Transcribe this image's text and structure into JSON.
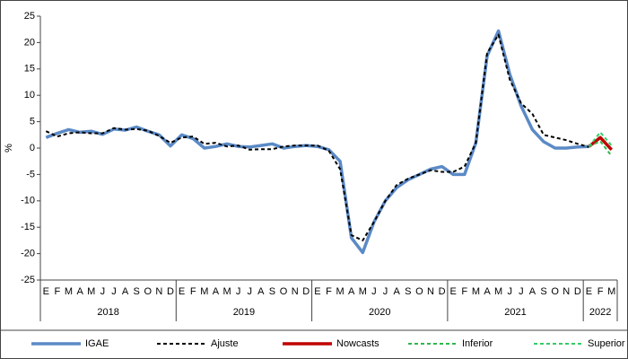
{
  "chart_data": {
    "type": "line",
    "y_label": "%",
    "categories": [
      "E",
      "F",
      "M",
      "A",
      "M",
      "J",
      "J",
      "A",
      "S",
      "O",
      "N",
      "D",
      "E",
      "F",
      "M",
      "A",
      "M",
      "J",
      "J",
      "A",
      "S",
      "O",
      "N",
      "D",
      "E",
      "F",
      "M",
      "A",
      "M",
      "J",
      "J",
      "A",
      "S",
      "O",
      "N",
      "D",
      "E",
      "F",
      "M",
      "A",
      "M",
      "J",
      "J",
      "A",
      "S",
      "O",
      "N",
      "D",
      "E",
      "F",
      "M"
    ],
    "years": [
      "2018",
      "2019",
      "2020",
      "2021",
      "2022"
    ],
    "ylim": [
      -25,
      25
    ],
    "yticks": [
      -25,
      -20,
      -15,
      -10,
      -5,
      0,
      5,
      10,
      15,
      20,
      25
    ],
    "series": [
      {
        "name": "IGAE",
        "color": "#5b8ac6",
        "dashed": false,
        "values": [
          2.0,
          2.8,
          3.5,
          3.0,
          3.2,
          2.6,
          3.6,
          3.4,
          4.0,
          3.2,
          2.5,
          0.4,
          2.5,
          1.8,
          0.0,
          0.3,
          0.8,
          0.3,
          0.2,
          0.5,
          0.8,
          0.0,
          0.3,
          0.5,
          0.3,
          -0.3,
          -2.5,
          -17,
          -19.8,
          -14,
          -10,
          -7.5,
          -6,
          -5,
          -4,
          -3.5,
          -5,
          -5,
          1,
          17.5,
          22.2,
          14,
          8,
          3.5,
          1.2,
          0.0,
          0.0,
          0.2,
          0.3,
          null,
          null
        ]
      },
      {
        "name": "Ajuste",
        "color": "#000000",
        "dashed": true,
        "values": [
          3.2,
          2.2,
          2.8,
          3.0,
          2.8,
          2.8,
          3.8,
          3.5,
          3.6,
          3.3,
          2.3,
          1.0,
          2.0,
          2.2,
          0.8,
          1.0,
          0.3,
          0.5,
          -0.3,
          -0.2,
          -0.2,
          0.3,
          0.5,
          0.5,
          0.5,
          -0.5,
          -4,
          -16.5,
          -17.5,
          -14,
          -10,
          -7,
          -5.8,
          -5,
          -4.2,
          -4.5,
          -4.5,
          -3.5,
          1,
          18,
          21.5,
          13,
          8.5,
          6.5,
          2.5,
          2.0,
          1.5,
          0.8,
          0.2,
          null,
          null
        ]
      },
      {
        "name": "Nowcasts",
        "color": "#c00000",
        "dashed": false,
        "values": [
          null,
          null,
          null,
          null,
          null,
          null,
          null,
          null,
          null,
          null,
          null,
          null,
          null,
          null,
          null,
          null,
          null,
          null,
          null,
          null,
          null,
          null,
          null,
          null,
          null,
          null,
          null,
          null,
          null,
          null,
          null,
          null,
          null,
          null,
          null,
          null,
          null,
          null,
          null,
          null,
          null,
          null,
          null,
          null,
          null,
          null,
          null,
          null,
          0.3,
          2.0,
          -0.3
        ]
      },
      {
        "name": "Inferior",
        "color": "#2eb84b",
        "dashed": true,
        "values": [
          null,
          null,
          null,
          null,
          null,
          null,
          null,
          null,
          null,
          null,
          null,
          null,
          null,
          null,
          null,
          null,
          null,
          null,
          null,
          null,
          null,
          null,
          null,
          null,
          null,
          null,
          null,
          null,
          null,
          null,
          null,
          null,
          null,
          null,
          null,
          null,
          null,
          null,
          null,
          null,
          null,
          null,
          null,
          null,
          null,
          null,
          null,
          null,
          0.3,
          1.3,
          -1.5
        ]
      },
      {
        "name": "Superior",
        "color": "#33cc66",
        "dashed": true,
        "values": [
          null,
          null,
          null,
          null,
          null,
          null,
          null,
          null,
          null,
          null,
          null,
          null,
          null,
          null,
          null,
          null,
          null,
          null,
          null,
          null,
          null,
          null,
          null,
          null,
          null,
          null,
          null,
          null,
          null,
          null,
          null,
          null,
          null,
          null,
          null,
          null,
          null,
          null,
          null,
          null,
          null,
          null,
          null,
          null,
          null,
          null,
          null,
          null,
          0.3,
          3.0,
          0.5
        ]
      }
    ]
  }
}
